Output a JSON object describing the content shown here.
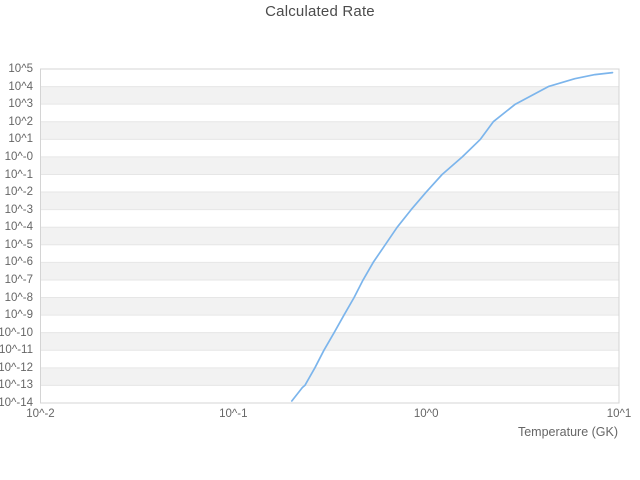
{
  "title": "Calculated Rate",
  "colors": {
    "background": "#ffffff",
    "band_alternate": "#f2f2f2",
    "gridline": "#e6e6e6",
    "plot_border": "#d4d4d4",
    "curve": "#7cb5ec",
    "title_text": "#4c4c4c",
    "tick_text": "#666666"
  },
  "chart_data": {
    "type": "line",
    "title": "Calculated Rate",
    "xlabel": "Temperature (GK)",
    "ylabel": "",
    "x_scale": "log",
    "y_scale": "log",
    "xlim": [
      0.01,
      10
    ],
    "ylim": [
      1e-14,
      100000.0
    ],
    "grid": "horizontal-bands-alternating",
    "legend": "none",
    "x_ticks": [
      {
        "label": "10^-2",
        "log": -2
      },
      {
        "label": "10^-1",
        "log": -1
      },
      {
        "label": "10^0",
        "log": 0
      },
      {
        "label": "10^1",
        "log": 1
      }
    ],
    "y_ticks": [
      {
        "label": "10^5",
        "log": 5
      },
      {
        "label": "10^4",
        "log": 4
      },
      {
        "label": "10^3",
        "log": 3
      },
      {
        "label": "10^2",
        "log": 2
      },
      {
        "label": "10^1",
        "log": 1
      },
      {
        "label": "10^-0",
        "log": 0
      },
      {
        "label": "10^-1",
        "log": -1
      },
      {
        "label": "10^-2",
        "log": -2
      },
      {
        "label": "10^-3",
        "log": -3
      },
      {
        "label": "10^-4",
        "log": -4
      },
      {
        "label": "10^-5",
        "log": -5
      },
      {
        "label": "10^-6",
        "log": -6
      },
      {
        "label": "10^-7",
        "log": -7
      },
      {
        "label": "10^-8",
        "log": -8
      },
      {
        "label": "10^-9",
        "log": -9
      },
      {
        "label": "10^-10",
        "log": -10
      },
      {
        "label": "10^-11",
        "log": -11
      },
      {
        "label": "10^-12",
        "log": -12
      },
      {
        "label": "10^-13",
        "log": -13
      },
      {
        "label": "10^-14",
        "log": -14
      }
    ],
    "series": [
      {
        "name": "Calculated Rate",
        "points": [
          [
            0.201,
            1.3e-14
          ],
          [
            0.228,
            7.6e-14
          ],
          [
            0.235,
            1e-13
          ],
          [
            0.265,
            1e-12
          ],
          [
            0.295,
            1e-11
          ],
          [
            0.333,
            1e-10
          ],
          [
            0.375,
            1e-09
          ],
          [
            0.423,
            1e-08
          ],
          [
            0.471,
            1e-07
          ],
          [
            0.531,
            1e-06
          ],
          [
            0.613,
            1e-05
          ],
          [
            0.708,
            0.0001
          ],
          [
            0.836,
            0.001
          ],
          [
            1.0,
            0.01
          ],
          [
            1.21,
            0.1
          ],
          [
            1.54,
            1.0
          ],
          [
            1.91,
            10
          ],
          [
            2.23,
            100
          ],
          [
            2.9,
            1000
          ],
          [
            4.3,
            10000
          ],
          [
            5.9,
            28000
          ],
          [
            7.5,
            48000
          ],
          [
            9.25,
            62000
          ]
        ]
      }
    ]
  }
}
